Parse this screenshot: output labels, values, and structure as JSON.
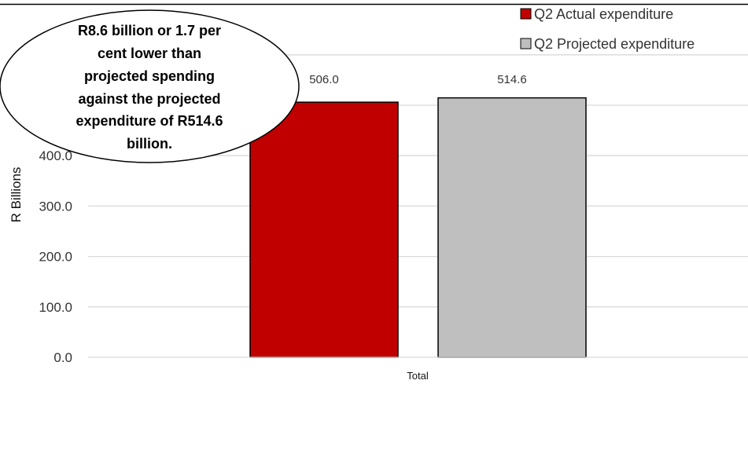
{
  "chart_data": {
    "type": "bar",
    "categories": [
      "Total"
    ],
    "series": [
      {
        "name": "Q2 Actual expenditure",
        "values": [
          506.0
        ],
        "color": "#C00000"
      },
      {
        "name": "Q2 Projected expenditure",
        "values": [
          514.6
        ],
        "color": "#BFBFBF"
      }
    ],
    "data_labels": [
      "506.0",
      "514.6"
    ],
    "ylabel": "R Billions",
    "xlabel": "",
    "ylim": [
      0,
      600
    ],
    "yticks": [
      {
        "value": 0,
        "label": "0.0"
      },
      {
        "value": 100,
        "label": "100.0"
      },
      {
        "value": 200,
        "label": "200.0"
      },
      {
        "value": 300,
        "label": "300.0"
      },
      {
        "value": 400,
        "label": "400.0"
      }
    ],
    "grid": true,
    "legend_position": "top-right",
    "annotation": {
      "lines": [
        "R8.6 billion or 1.7 per",
        "cent lower than",
        "projected spending",
        "against the projected",
        "expenditure of R514.6",
        "billion."
      ]
    }
  }
}
